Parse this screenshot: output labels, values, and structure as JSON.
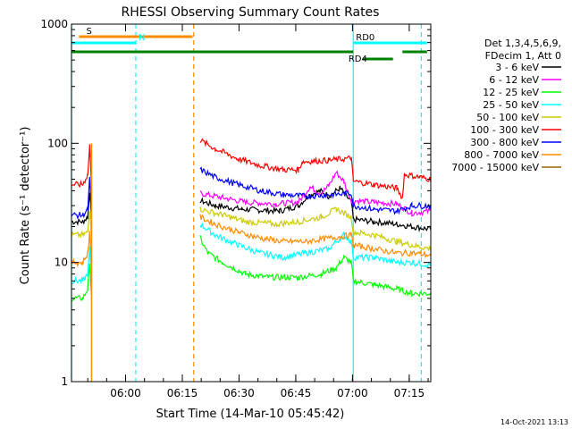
{
  "chart_data": {
    "type": "line",
    "title": "RHESSI Observing Summary Count Rates",
    "xlabel": "Start Time (14-Mar-10 05:45:42)",
    "ylabel": "Count Rate (s⁻¹ detector⁻¹)",
    "yscale": "log",
    "ylim": [
      1,
      1000
    ],
    "xlim_minutes": [
      0,
      95
    ],
    "x_ticks": [
      {
        "label": "06:00",
        "min": 14.3
      },
      {
        "label": "06:15",
        "min": 29.3
      },
      {
        "label": "06:30",
        "min": 44.3
      },
      {
        "label": "06:45",
        "min": 59.3
      },
      {
        "label": "07:00",
        "min": 74.3
      },
      {
        "label": "07:15",
        "min": 89.3
      }
    ],
    "y_ticks": [
      "1",
      "10",
      "100",
      "1000"
    ],
    "legend_header": [
      "Det 1,3,4,5,6,9,",
      "FDecim 1, Att 0"
    ],
    "legend_position": "right",
    "footer_date": "14-Oct-2021 13:13",
    "bars": [
      {
        "label": "S",
        "color": "#ff8c00",
        "start": 2,
        "end": 32,
        "row": 1
      },
      {
        "label": "N",
        "color": "#00ffff",
        "start": 0,
        "end": 17,
        "row": 2
      },
      {
        "label": "",
        "color": "#008000",
        "start": 0,
        "end": 74.5,
        "row": 3
      },
      {
        "label": "RD0",
        "color": "#00ffff",
        "start": 74.5,
        "end": 94,
        "row": 2
      },
      {
        "label": "RD4",
        "color": "#008000",
        "start": 77,
        "end": 85,
        "row": 4
      },
      {
        "label": "",
        "color": "#008000",
        "start": 87.5,
        "end": 94,
        "row": 3
      }
    ],
    "vlines": [
      {
        "min": 0,
        "color": "#00ffff",
        "style": "solid"
      },
      {
        "min": 17,
        "color": "#00ffff",
        "style": "dashed"
      },
      {
        "min": 32.3,
        "color": "#ff8c00",
        "style": "dashed"
      },
      {
        "min": 74.5,
        "color": "#00ffff",
        "style": "solid"
      },
      {
        "min": 92.5,
        "color": "#00ffff",
        "style": "dashed"
      }
    ],
    "spike": {
      "min": 5.3,
      "color": "#ff8c00",
      "top": 100,
      "bottom": 1
    },
    "series": [
      {
        "name": "3 - 6 keV",
        "color": "#000000",
        "segments": [
          [
            [
              0,
              22
            ],
            [
              3,
              22
            ],
            [
              4.3,
              24
            ],
            [
              4.8,
              40
            ],
            [
              5.3,
              22
            ]
          ],
          [
            [
              34,
              33
            ],
            [
              38,
              30
            ],
            [
              45,
              28
            ],
            [
              55,
              27
            ],
            [
              60,
              30
            ],
            [
              63,
              37
            ],
            [
              66,
              40
            ],
            [
              68,
              36
            ],
            [
              71,
              42
            ],
            [
              74,
              32
            ],
            [
              74.5,
              23
            ],
            [
              80,
              22
            ],
            [
              86,
              21
            ],
            [
              90,
              20
            ],
            [
              95,
              19
            ]
          ]
        ]
      },
      {
        "name": "6 - 12 keV",
        "color": "#ff00ff",
        "segments": [
          [
            [
              34,
              38
            ],
            [
              40,
              35
            ],
            [
              46,
              32
            ],
            [
              54,
              31
            ],
            [
              60,
              32
            ],
            [
              63,
              43
            ],
            [
              66,
              38
            ],
            [
              68,
              44
            ],
            [
              70,
              57
            ],
            [
              72,
              48
            ],
            [
              74,
              33
            ],
            [
              74.5,
              33
            ],
            [
              80,
              32
            ],
            [
              86,
              31
            ],
            [
              90,
              26
            ],
            [
              95,
              27
            ]
          ]
        ]
      },
      {
        "name": "12 - 25 keV",
        "color": "#00ff00",
        "segments": [
          [
            [
              0,
              5
            ],
            [
              3,
              5
            ],
            [
              4.3,
              6
            ],
            [
              4.8,
              10
            ],
            [
              5.3,
              5
            ]
          ],
          [
            [
              34,
              16
            ],
            [
              36,
              12
            ],
            [
              40,
              10
            ],
            [
              46,
              8
            ],
            [
              52,
              7.5
            ],
            [
              60,
              7.5
            ],
            [
              66,
              8
            ],
            [
              70,
              9
            ],
            [
              72,
              11
            ],
            [
              74,
              10
            ],
            [
              74.5,
              7
            ],
            [
              80,
              6.5
            ],
            [
              86,
              6
            ],
            [
              90,
              5.5
            ],
            [
              95,
              5.5
            ]
          ]
        ]
      },
      {
        "name": "25 - 50 keV",
        "color": "#00ffff",
        "segments": [
          [
            [
              0,
              7
            ],
            [
              3,
              7
            ],
            [
              4.3,
              8
            ],
            [
              4.8,
              13
            ],
            [
              5.3,
              7
            ]
          ],
          [
            [
              34,
              21
            ],
            [
              38,
              17
            ],
            [
              44,
              14
            ],
            [
              50,
              12
            ],
            [
              56,
              11
            ],
            [
              62,
              12
            ],
            [
              68,
              13
            ],
            [
              72,
              17
            ],
            [
              74,
              15
            ],
            [
              74.5,
              11
            ],
            [
              80,
              11
            ],
            [
              86,
              10
            ],
            [
              90,
              10
            ],
            [
              95,
              9.5
            ]
          ]
        ]
      },
      {
        "name": "50 - 100 keV",
        "color": "#cccc00",
        "segments": [
          [
            [
              0,
              17
            ],
            [
              3,
              17
            ],
            [
              4.3,
              18
            ],
            [
              4.8,
              28
            ],
            [
              5.3,
              17
            ]
          ],
          [
            [
              34,
              28
            ],
            [
              40,
              25
            ],
            [
              46,
              22
            ],
            [
              54,
              21
            ],
            [
              60,
              22
            ],
            [
              66,
              24
            ],
            [
              70,
              28
            ],
            [
              74,
              24
            ],
            [
              74.5,
              18
            ],
            [
              80,
              17
            ],
            [
              86,
              15
            ],
            [
              90,
              14
            ],
            [
              95,
              13
            ]
          ]
        ]
      },
      {
        "name": "100 - 300 keV",
        "color": "#ff0000",
        "segments": [
          [
            [
              0,
              45
            ],
            [
              3,
              45
            ],
            [
              4.3,
              55
            ],
            [
              4.8,
              95
            ],
            [
              5.3,
              45
            ]
          ],
          [
            [
              34,
              106
            ],
            [
              38,
              90
            ],
            [
              44,
              74
            ],
            [
              50,
              65
            ],
            [
              56,
              60
            ],
            [
              60,
              60
            ],
            [
              61,
              70
            ],
            [
              68,
              72
            ],
            [
              74,
              75
            ],
            [
              74.5,
              48
            ],
            [
              80,
              45
            ],
            [
              86,
              42
            ],
            [
              87.5,
              35
            ],
            [
              88,
              55
            ],
            [
              92,
              52
            ],
            [
              95,
              50
            ]
          ]
        ]
      },
      {
        "name": "300 - 800 keV",
        "color": "#0000ff",
        "segments": [
          [
            [
              0,
              25
            ],
            [
              3,
              25
            ],
            [
              4.3,
              28
            ],
            [
              4.8,
              50
            ],
            [
              5.3,
              25
            ]
          ],
          [
            [
              34,
              60
            ],
            [
              38,
              52
            ],
            [
              44,
              45
            ],
            [
              50,
              40
            ],
            [
              56,
              37
            ],
            [
              62,
              36
            ],
            [
              68,
              37
            ],
            [
              74,
              38
            ],
            [
              74.5,
              30
            ],
            [
              80,
              28
            ],
            [
              86,
              27
            ],
            [
              90,
              30
            ],
            [
              95,
              30
            ]
          ]
        ]
      },
      {
        "name": "800 - 7000 keV",
        "color": "#ff8c00",
        "segments": [
          [
            [
              0,
              10
            ],
            [
              3,
              10
            ],
            [
              4.3,
              12
            ],
            [
              4.8,
              18
            ],
            [
              5.3,
              10
            ]
          ],
          [
            [
              34,
              24
            ],
            [
              38,
              21
            ],
            [
              44,
              18
            ],
            [
              50,
              16
            ],
            [
              56,
              15
            ],
            [
              62,
              15
            ],
            [
              68,
              16
            ],
            [
              74,
              17
            ],
            [
              74.5,
              14
            ],
            [
              80,
              13
            ],
            [
              86,
              12
            ],
            [
              90,
              12
            ],
            [
              95,
              11.5
            ]
          ]
        ]
      },
      {
        "name": "7000 - 15000 keV",
        "color": "#996600",
        "segments": []
      }
    ]
  }
}
